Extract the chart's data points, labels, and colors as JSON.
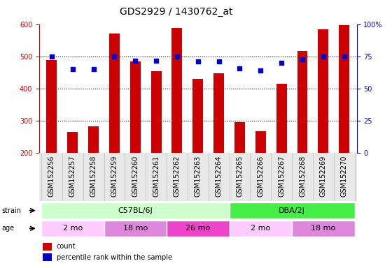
{
  "title": "GDS2929 / 1430762_at",
  "samples": [
    "GSM152256",
    "GSM152257",
    "GSM152258",
    "GSM152259",
    "GSM152260",
    "GSM152261",
    "GSM152262",
    "GSM152263",
    "GSM152264",
    "GSM152265",
    "GSM152266",
    "GSM152267",
    "GSM152268",
    "GSM152269",
    "GSM152270"
  ],
  "counts": [
    490,
    265,
    282,
    572,
    484,
    454,
    590,
    430,
    448,
    295,
    268,
    415,
    518,
    585,
    598
  ],
  "percentile_ranks": [
    75,
    65,
    65,
    75,
    72,
    72,
    75,
    71,
    71,
    66,
    64,
    70,
    73,
    75,
    75
  ],
  "ylim_left": [
    200,
    600
  ],
  "ylim_right": [
    0,
    100
  ],
  "yticks_left": [
    200,
    300,
    400,
    500,
    600
  ],
  "yticks_right": [
    0,
    25,
    50,
    75,
    100
  ],
  "ytick_labels_right": [
    "0",
    "25",
    "50",
    "75",
    "100%"
  ],
  "bar_color": "#cc0000",
  "dot_color": "#0000cc",
  "strain_groups": [
    {
      "label": "C57BL/6J",
      "start": 0,
      "end": 8,
      "color": "#ccffcc"
    },
    {
      "label": "DBA/2J",
      "start": 9,
      "end": 14,
      "color": "#44ee44"
    }
  ],
  "age_groups": [
    {
      "label": "2 mo",
      "start": 0,
      "end": 2,
      "color": "#ffccff"
    },
    {
      "label": "18 mo",
      "start": 3,
      "end": 5,
      "color": "#dd88dd"
    },
    {
      "label": "26 mo",
      "start": 6,
      "end": 8,
      "color": "#ee44cc"
    },
    {
      "label": "2 mo",
      "start": 9,
      "end": 11,
      "color": "#ffccff"
    },
    {
      "label": "18 mo",
      "start": 12,
      "end": 14,
      "color": "#dd88dd"
    }
  ],
  "bar_width": 0.5,
  "title_fontsize": 10,
  "tick_fontsize": 7,
  "panel_fontsize": 8,
  "legend_fontsize": 7
}
